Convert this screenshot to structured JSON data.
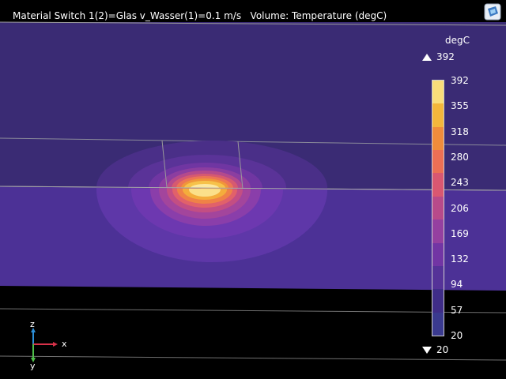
{
  "header": {
    "title": "Material Switch 1(2)=Glas v_Wasser(1)=0.1 m/s   Volume: Temperature (degC)"
  },
  "toolbar": {
    "logo_icon": "comsol-logo-icon"
  },
  "legend": {
    "unit": "degC",
    "max_label": "392",
    "min_label": "20",
    "ticks": [
      "392",
      "355",
      "318",
      "280",
      "243",
      "206",
      "169",
      "132",
      "94",
      "57",
      "20"
    ],
    "colors": [
      "#f9dd7a",
      "#f3b63b",
      "#ef8c3b",
      "#ec6f55",
      "#d95771",
      "#b84a8a",
      "#9540a0",
      "#7235a4",
      "#553298",
      "#3f2d88",
      "#3a3a8f"
    ]
  },
  "axes": {
    "z": "z",
    "x": "x",
    "y": "y"
  },
  "colors": {
    "background": "#000000",
    "upper_slab": "#3a2b74",
    "lower_slab": "#4c3196",
    "hot_core": "#fff2b0"
  }
}
